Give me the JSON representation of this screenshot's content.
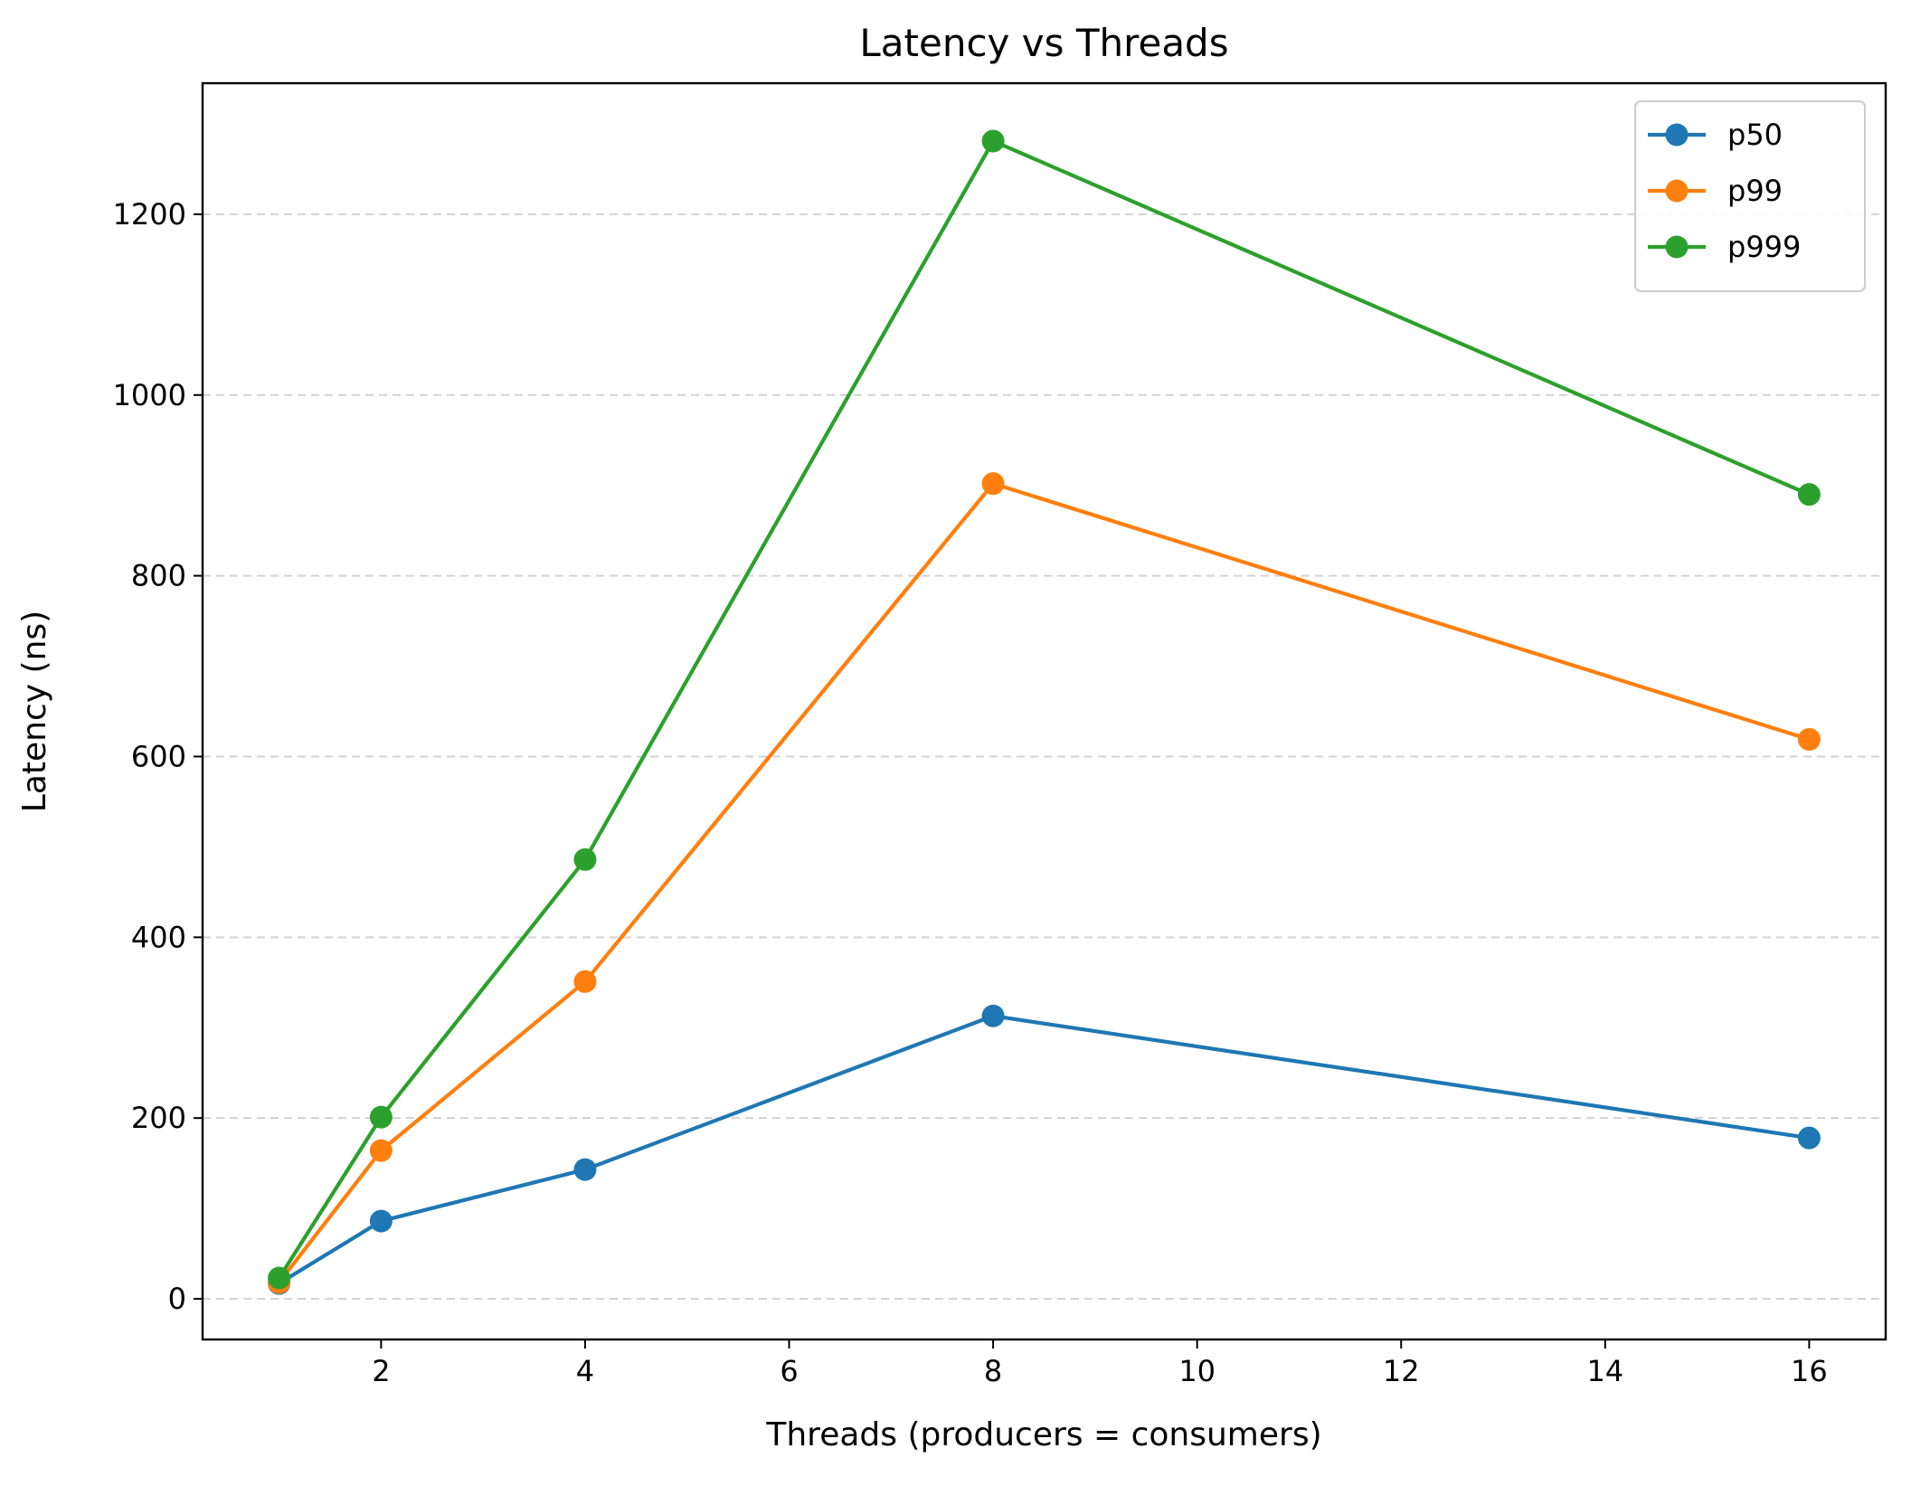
{
  "chart_data": {
    "type": "line",
    "title": "Latency vs Threads",
    "xlabel": "Threads (producers = consumers)",
    "ylabel": "Latency (ns)",
    "x": [
      1,
      2,
      4,
      8,
      16
    ],
    "xlim": [
      0.25,
      16.75
    ],
    "ylim": [
      -45,
      1345
    ],
    "xticks": [
      2,
      4,
      6,
      8,
      10,
      12,
      14,
      16
    ],
    "yticks": [
      0,
      200,
      400,
      600,
      800,
      1000,
      1200
    ],
    "grid": "y-dashed",
    "legend": "top-right",
    "series": [
      {
        "name": "p50",
        "color": "#1f77b4",
        "values": [
          17,
          86,
          143,
          313,
          178
        ]
      },
      {
        "name": "p99",
        "color": "#ff7f0e",
        "values": [
          18,
          164,
          351,
          902,
          619
        ]
      },
      {
        "name": "p999",
        "color": "#2ca02c",
        "values": [
          23,
          201,
          486,
          1281,
          890
        ]
      }
    ]
  }
}
